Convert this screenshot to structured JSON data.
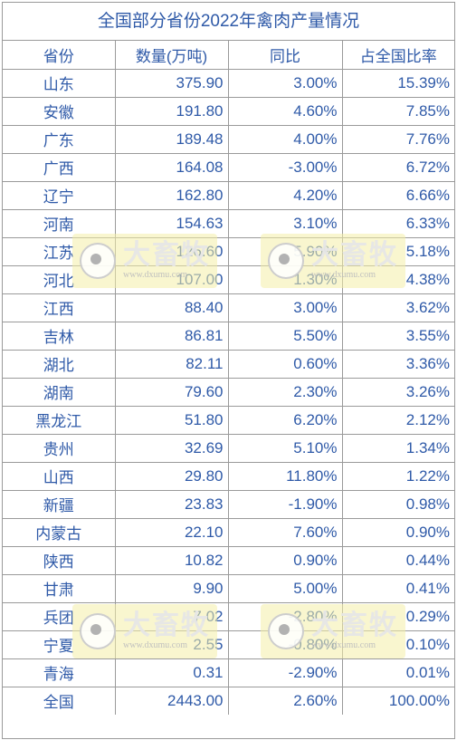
{
  "title": "全国部分省份2022年禽肉产量情况",
  "headers": [
    "省份",
    "数量(万吨)",
    "同比",
    "占全国比率"
  ],
  "rows": [
    {
      "province": "山东",
      "quantity": "375.90",
      "yoy": "3.00%",
      "share": "15.39%"
    },
    {
      "province": "安徽",
      "quantity": "191.80",
      "yoy": "4.60%",
      "share": "7.85%"
    },
    {
      "province": "广东",
      "quantity": "189.48",
      "yoy": "4.00%",
      "share": "7.76%"
    },
    {
      "province": "广西",
      "quantity": "164.08",
      "yoy": "-3.00%",
      "share": "6.72%"
    },
    {
      "province": "辽宁",
      "quantity": "162.80",
      "yoy": "4.20%",
      "share": "6.66%"
    },
    {
      "province": "河南",
      "quantity": "154.63",
      "yoy": "3.10%",
      "share": "6.33%"
    },
    {
      "province": "江苏",
      "quantity": "126.60",
      "yoy": "5.90%",
      "share": "5.18%"
    },
    {
      "province": "河北",
      "quantity": "107.00",
      "yoy": "1.30%",
      "share": "4.38%"
    },
    {
      "province": "江西",
      "quantity": "88.40",
      "yoy": "3.00%",
      "share": "3.62%"
    },
    {
      "province": "吉林",
      "quantity": "86.81",
      "yoy": "5.50%",
      "share": "3.55%"
    },
    {
      "province": "湖北",
      "quantity": "82.11",
      "yoy": "0.60%",
      "share": "3.36%"
    },
    {
      "province": "湖南",
      "quantity": "79.60",
      "yoy": "2.30%",
      "share": "3.26%"
    },
    {
      "province": "黑龙江",
      "quantity": "51.80",
      "yoy": "6.20%",
      "share": "2.12%"
    },
    {
      "province": "贵州",
      "quantity": "32.69",
      "yoy": "5.10%",
      "share": "1.34%"
    },
    {
      "province": "山西",
      "quantity": "29.80",
      "yoy": "11.80%",
      "share": "1.22%"
    },
    {
      "province": "新疆",
      "quantity": "23.83",
      "yoy": "-1.90%",
      "share": "0.98%"
    },
    {
      "province": "内蒙古",
      "quantity": "22.10",
      "yoy": "7.60%",
      "share": "0.90%"
    },
    {
      "province": "陕西",
      "quantity": "10.82",
      "yoy": "0.90%",
      "share": "0.44%"
    },
    {
      "province": "甘肃",
      "quantity": "9.90",
      "yoy": "5.00%",
      "share": "0.41%"
    },
    {
      "province": "兵团",
      "quantity": "7.02",
      "yoy": "-2.80%",
      "share": "0.29%"
    },
    {
      "province": "宁夏",
      "quantity": "2.55",
      "yoy": "-0.80%",
      "share": "0.10%"
    },
    {
      "province": "青海",
      "quantity": "0.31",
      "yoy": "-2.90%",
      "share": "0.01%"
    },
    {
      "province": "全国",
      "quantity": "2443.00",
      "yoy": "2.60%",
      "share": "100.00%"
    }
  ],
  "watermark": {
    "name": "大畜牧",
    "site": "www.dxumu.com",
    "icon": "logo-icon"
  },
  "colors": {
    "text": "#2f5aa8",
    "border": "#9a9a9a",
    "watermark_bg": "#f4eea8"
  }
}
